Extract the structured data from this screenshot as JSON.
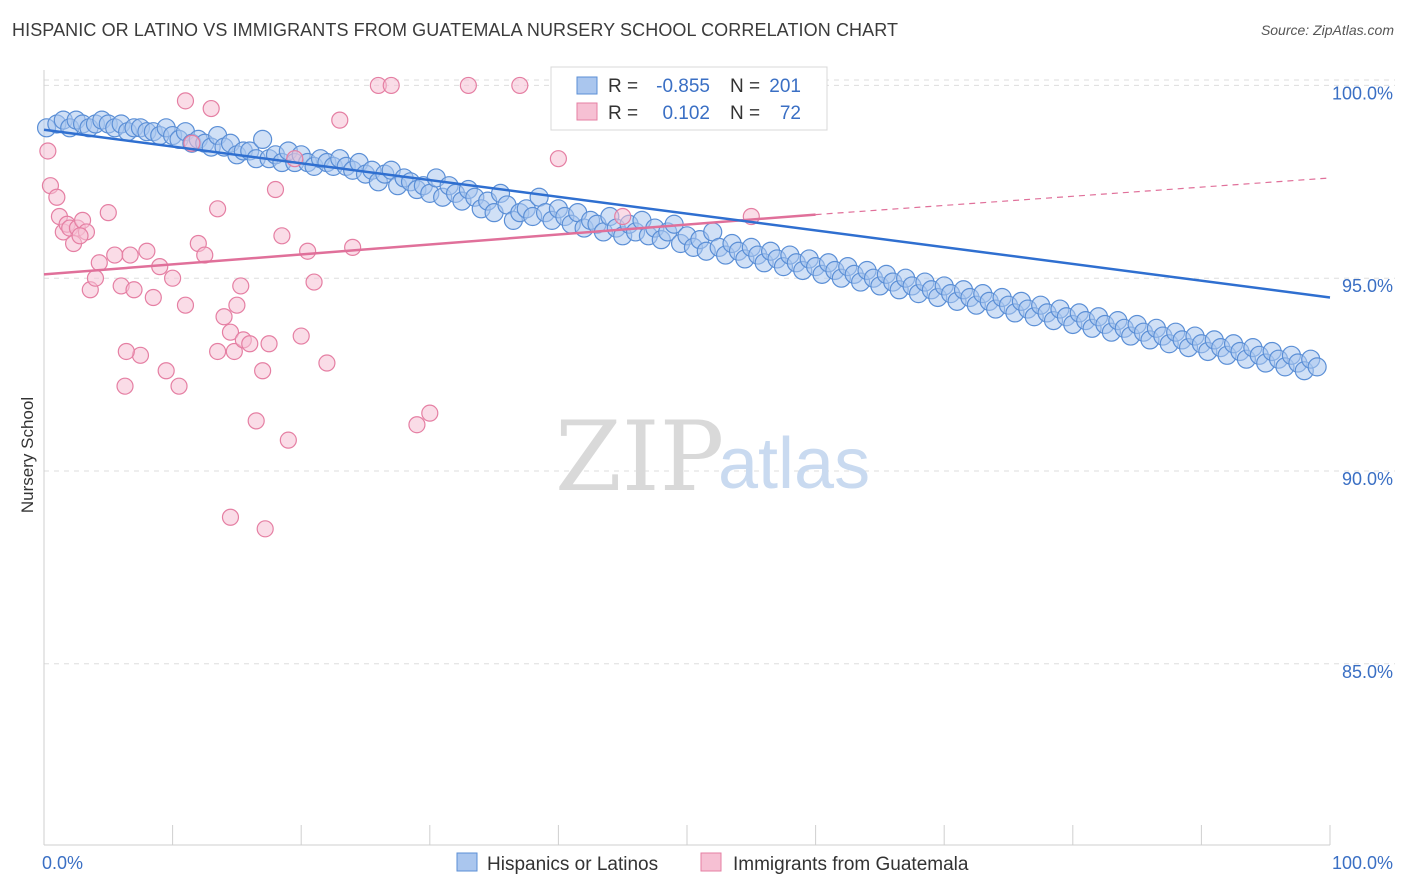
{
  "title": "HISPANIC OR LATINO VS IMMIGRANTS FROM GUATEMALA NURSERY SCHOOL CORRELATION CHART",
  "source": "Source: ZipAtlas.com",
  "watermark": {
    "zip": "ZIP",
    "atlas": "atlas"
  },
  "legend_box": {
    "rows": [
      {
        "r_label": "R =",
        "r_value": "-0.855",
        "n_label": "N =",
        "n_value": "201"
      },
      {
        "r_label": "R =",
        "r_value": "0.102",
        "n_label": "N =",
        "n_value": "72"
      }
    ]
  },
  "bottom_legend": [
    "Hispanics or Latinos",
    "Immigrants from Guatemala"
  ],
  "colors": {
    "blue": "#5b8fd6",
    "blue_fill": "#aac6ee",
    "blue_line": "#2f6fd0",
    "pink": "#e57fa3",
    "pink_fill": "#f6c0d3",
    "pink_line": "#e0709a",
    "grid": "#dddddd",
    "axis": "#cfcfcf"
  },
  "chart_data": {
    "type": "scatter",
    "xlabel": "",
    "ylabel": "Nursery School",
    "xlim": [
      0,
      100
    ],
    "ylim": [
      80.3,
      100.4
    ],
    "x_tick_labels": [
      "0.0%",
      "100.0%"
    ],
    "y_ticks": [
      85,
      90,
      95,
      100
    ],
    "y_tick_labels": [
      "85.0%",
      "90.0%",
      "95.0%",
      "100.0%"
    ],
    "grid": true,
    "legend_position": "top-center",
    "series": [
      {
        "name": "Hispanics or Latinos",
        "r": -0.855,
        "n": 201,
        "trend": {
          "x": [
            0,
            100
          ],
          "y": [
            98.85,
            94.5
          ]
        },
        "points": [
          [
            0.2,
            98.9
          ],
          [
            1,
            99
          ],
          [
            1.5,
            99.1
          ],
          [
            2,
            98.9
          ],
          [
            2.5,
            99.1
          ],
          [
            3,
            99
          ],
          [
            3.5,
            98.9
          ],
          [
            4,
            99
          ],
          [
            4.5,
            99.1
          ],
          [
            5,
            99
          ],
          [
            5.5,
            98.9
          ],
          [
            6,
            99
          ],
          [
            6.5,
            98.8
          ],
          [
            7,
            98.9
          ],
          [
            7.5,
            98.9
          ],
          [
            8,
            98.8
          ],
          [
            8.5,
            98.8
          ],
          [
            9,
            98.7
          ],
          [
            9.5,
            98.9
          ],
          [
            10,
            98.7
          ],
          [
            10.5,
            98.6
          ],
          [
            11,
            98.8
          ],
          [
            11.5,
            98.5
          ],
          [
            12,
            98.6
          ],
          [
            12.5,
            98.5
          ],
          [
            13,
            98.4
          ],
          [
            13.5,
            98.7
          ],
          [
            14,
            98.4
          ],
          [
            14.5,
            98.5
          ],
          [
            15,
            98.2
          ],
          [
            15.5,
            98.3
          ],
          [
            16,
            98.3
          ],
          [
            16.5,
            98.1
          ],
          [
            17,
            98.6
          ],
          [
            17.5,
            98.1
          ],
          [
            18,
            98.2
          ],
          [
            18.5,
            98
          ],
          [
            19,
            98.3
          ],
          [
            19.5,
            98
          ],
          [
            20,
            98.2
          ],
          [
            20.5,
            98
          ],
          [
            21,
            97.9
          ],
          [
            21.5,
            98.1
          ],
          [
            22,
            98
          ],
          [
            22.5,
            97.9
          ],
          [
            23,
            98.1
          ],
          [
            23.5,
            97.9
          ],
          [
            24,
            97.8
          ],
          [
            24.5,
            98
          ],
          [
            25,
            97.7
          ],
          [
            25.5,
            97.8
          ],
          [
            26,
            97.5
          ],
          [
            26.5,
            97.7
          ],
          [
            27,
            97.8
          ],
          [
            27.5,
            97.4
          ],
          [
            28,
            97.6
          ],
          [
            28.5,
            97.5
          ],
          [
            29,
            97.3
          ],
          [
            29.5,
            97.4
          ],
          [
            30,
            97.2
          ],
          [
            30.5,
            97.6
          ],
          [
            31,
            97.1
          ],
          [
            31.5,
            97.4
          ],
          [
            32,
            97.2
          ],
          [
            32.5,
            97
          ],
          [
            33,
            97.3
          ],
          [
            33.5,
            97.1
          ],
          [
            34,
            96.8
          ],
          [
            34.5,
            97
          ],
          [
            35,
            96.7
          ],
          [
            35.5,
            97.2
          ],
          [
            36,
            96.9
          ],
          [
            36.5,
            96.5
          ],
          [
            37,
            96.7
          ],
          [
            37.5,
            96.8
          ],
          [
            38,
            96.6
          ],
          [
            38.5,
            97.1
          ],
          [
            39,
            96.7
          ],
          [
            39.5,
            96.5
          ],
          [
            40,
            96.8
          ],
          [
            40.5,
            96.6
          ],
          [
            41,
            96.4
          ],
          [
            41.5,
            96.7
          ],
          [
            42,
            96.3
          ],
          [
            42.5,
            96.5
          ],
          [
            43,
            96.4
          ],
          [
            43.5,
            96.2
          ],
          [
            44,
            96.6
          ],
          [
            44.5,
            96.3
          ],
          [
            45,
            96.1
          ],
          [
            45.5,
            96.4
          ],
          [
            46,
            96.2
          ],
          [
            46.5,
            96.5
          ],
          [
            47,
            96.1
          ],
          [
            47.5,
            96.3
          ],
          [
            48,
            96
          ],
          [
            48.5,
            96.2
          ],
          [
            49,
            96.4
          ],
          [
            49.5,
            95.9
          ],
          [
            50,
            96.1
          ],
          [
            50.5,
            95.8
          ],
          [
            51,
            96
          ],
          [
            51.5,
            95.7
          ],
          [
            52,
            96.2
          ],
          [
            52.5,
            95.8
          ],
          [
            53,
            95.6
          ],
          [
            53.5,
            95.9
          ],
          [
            54,
            95.7
          ],
          [
            54.5,
            95.5
          ],
          [
            55,
            95.8
          ],
          [
            55.5,
            95.6
          ],
          [
            56,
            95.4
          ],
          [
            56.5,
            95.7
          ],
          [
            57,
            95.5
          ],
          [
            57.5,
            95.3
          ],
          [
            58,
            95.6
          ],
          [
            58.5,
            95.4
          ],
          [
            59,
            95.2
          ],
          [
            59.5,
            95.5
          ],
          [
            60,
            95.3
          ],
          [
            60.5,
            95.1
          ],
          [
            61,
            95.4
          ],
          [
            61.5,
            95.2
          ],
          [
            62,
            95
          ],
          [
            62.5,
            95.3
          ],
          [
            63,
            95.1
          ],
          [
            63.5,
            94.9
          ],
          [
            64,
            95.2
          ],
          [
            64.5,
            95
          ],
          [
            65,
            94.8
          ],
          [
            65.5,
            95.1
          ],
          [
            66,
            94.9
          ],
          [
            66.5,
            94.7
          ],
          [
            67,
            95
          ],
          [
            67.5,
            94.8
          ],
          [
            68,
            94.6
          ],
          [
            68.5,
            94.9
          ],
          [
            69,
            94.7
          ],
          [
            69.5,
            94.5
          ],
          [
            70,
            94.8
          ],
          [
            70.5,
            94.6
          ],
          [
            71,
            94.4
          ],
          [
            71.5,
            94.7
          ],
          [
            72,
            94.5
          ],
          [
            72.5,
            94.3
          ],
          [
            73,
            94.6
          ],
          [
            73.5,
            94.4
          ],
          [
            74,
            94.2
          ],
          [
            74.5,
            94.5
          ],
          [
            75,
            94.3
          ],
          [
            75.5,
            94.1
          ],
          [
            76,
            94.4
          ],
          [
            76.5,
            94.2
          ],
          [
            77,
            94
          ],
          [
            77.5,
            94.3
          ],
          [
            78,
            94.1
          ],
          [
            78.5,
            93.9
          ],
          [
            79,
            94.2
          ],
          [
            79.5,
            94
          ],
          [
            80,
            93.8
          ],
          [
            80.5,
            94.1
          ],
          [
            81,
            93.9
          ],
          [
            81.5,
            93.7
          ],
          [
            82,
            94
          ],
          [
            82.5,
            93.8
          ],
          [
            83,
            93.6
          ],
          [
            83.5,
            93.9
          ],
          [
            84,
            93.7
          ],
          [
            84.5,
            93.5
          ],
          [
            85,
            93.8
          ],
          [
            85.5,
            93.6
          ],
          [
            86,
            93.4
          ],
          [
            86.5,
            93.7
          ],
          [
            87,
            93.5
          ],
          [
            87.5,
            93.3
          ],
          [
            88,
            93.6
          ],
          [
            88.5,
            93.4
          ],
          [
            89,
            93.2
          ],
          [
            89.5,
            93.5
          ],
          [
            90,
            93.3
          ],
          [
            90.5,
            93.1
          ],
          [
            91,
            93.4
          ],
          [
            91.5,
            93.2
          ],
          [
            92,
            93
          ],
          [
            92.5,
            93.3
          ],
          [
            93,
            93.1
          ],
          [
            93.5,
            92.9
          ],
          [
            94,
            93.2
          ],
          [
            94.5,
            93
          ],
          [
            95,
            92.8
          ],
          [
            95.5,
            93.1
          ],
          [
            96,
            92.9
          ],
          [
            96.5,
            92.7
          ],
          [
            97,
            93
          ],
          [
            97.5,
            92.8
          ],
          [
            98,
            92.6
          ],
          [
            98.5,
            92.9
          ],
          [
            99,
            92.7
          ]
        ]
      },
      {
        "name": "Immigrants from Guatemala",
        "r": 0.102,
        "n": 72,
        "trend": {
          "x": [
            0,
            60
          ],
          "y": [
            95.1,
            96.65
          ]
        },
        "trend_extension": {
          "x": [
            60,
            100
          ],
          "y": [
            96.65,
            97.6
          ]
        },
        "points": [
          [
            0.3,
            98.3
          ],
          [
            0.5,
            97.4
          ],
          [
            1,
            97.1
          ],
          [
            1.2,
            96.6
          ],
          [
            1.5,
            96.2
          ],
          [
            1.8,
            96.4
          ],
          [
            2,
            96.3
          ],
          [
            2.3,
            95.9
          ],
          [
            2.6,
            96.3
          ],
          [
            3,
            96.5
          ],
          [
            3.3,
            96.2
          ],
          [
            3.6,
            94.7
          ],
          [
            4,
            95
          ],
          [
            4.3,
            95.4
          ],
          [
            5,
            96.7
          ],
          [
            5.5,
            95.6
          ],
          [
            6,
            94.8
          ],
          [
            6.3,
            92.2
          ],
          [
            6.7,
            95.6
          ],
          [
            7,
            94.7
          ],
          [
            7.5,
            93
          ],
          [
            8,
            95.7
          ],
          [
            8.5,
            94.5
          ],
          [
            9,
            95.3
          ],
          [
            9.5,
            92.6
          ],
          [
            10,
            95
          ],
          [
            10.5,
            92.2
          ],
          [
            11,
            94.3
          ],
          [
            11,
            99.6
          ],
          [
            11.5,
            98.5
          ],
          [
            12,
            95.9
          ],
          [
            12.5,
            95.6
          ],
          [
            13,
            99.4
          ],
          [
            13.5,
            96.8
          ],
          [
            13.5,
            93.1
          ],
          [
            14,
            94
          ],
          [
            14.5,
            93.6
          ],
          [
            14.8,
            93.1
          ],
          [
            15,
            94.3
          ],
          [
            15.3,
            94.8
          ],
          [
            15.5,
            93.4
          ],
          [
            16,
            93.3
          ],
          [
            16.5,
            91.3
          ],
          [
            17,
            92.6
          ],
          [
            17.5,
            93.3
          ],
          [
            18,
            97.3
          ],
          [
            18.5,
            96.1
          ],
          [
            19,
            90.8
          ],
          [
            19.5,
            98.1
          ],
          [
            20,
            93.5
          ],
          [
            20.5,
            95.7
          ],
          [
            21,
            94.9
          ],
          [
            22,
            92.8
          ],
          [
            23,
            99.1
          ],
          [
            24,
            95.8
          ],
          [
            26,
            100
          ],
          [
            27,
            100
          ],
          [
            29,
            91.2
          ],
          [
            30,
            91.5
          ],
          [
            33,
            100
          ],
          [
            37,
            100
          ],
          [
            40,
            98.1
          ],
          [
            45,
            96.6
          ],
          [
            55,
            96.6
          ],
          [
            60,
            100
          ],
          [
            14.5,
            88.8
          ],
          [
            17.2,
            88.5
          ],
          [
            6.4,
            93.1
          ],
          [
            2.8,
            96.1
          ]
        ]
      }
    ]
  }
}
